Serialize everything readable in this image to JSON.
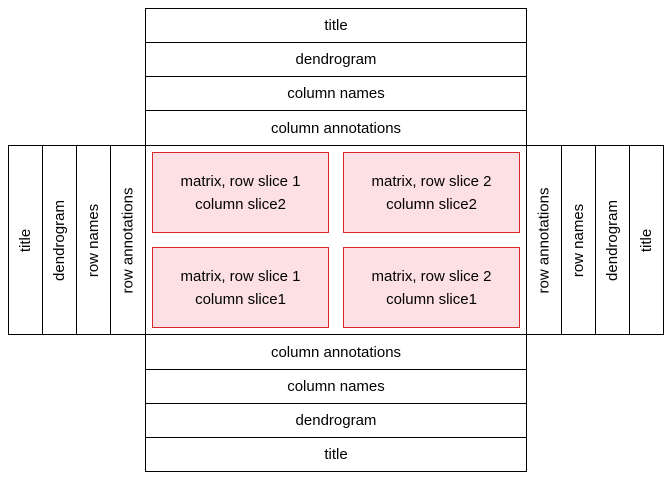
{
  "top": {
    "title": "title",
    "dendrogram": "dendrogram",
    "column_names": "column names",
    "column_annotations": "column annotations"
  },
  "bottom": {
    "column_annotations": "column annotations",
    "column_names": "column names",
    "dendrogram": "dendrogram",
    "title": "title"
  },
  "left": {
    "title": "title",
    "dendrogram": "dendrogram",
    "row_names": "row names",
    "row_annotations": "row annotations"
  },
  "right": {
    "row_annotations": "row annotations",
    "row_names": "row names",
    "dendrogram": "dendrogram",
    "title": "title"
  },
  "matrix": {
    "top_left": {
      "line1": "matrix, row slice 1",
      "line2": "column slice2"
    },
    "top_right": {
      "line1": "matrix, row slice 2",
      "line2": "column slice2"
    },
    "bottom_left": {
      "line1": "matrix, row slice 1",
      "line2": "column slice1"
    },
    "bottom_right": {
      "line1": "matrix, row slice 2",
      "line2": "column slice1"
    }
  },
  "colors": {
    "cell_fill": "#fde0e3",
    "cell_border": "#d9262c",
    "border": "#000000"
  }
}
